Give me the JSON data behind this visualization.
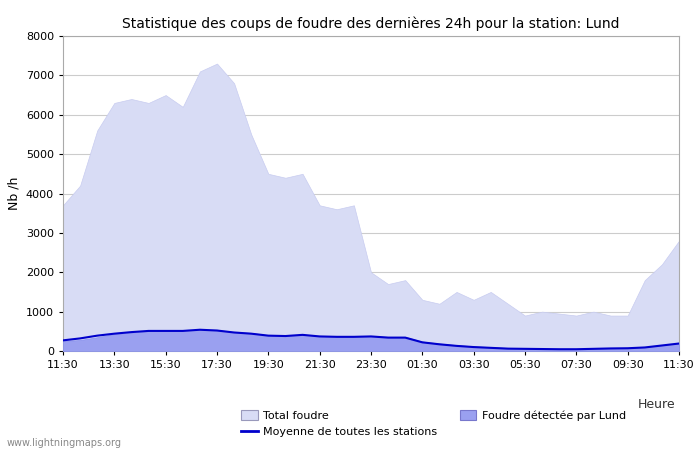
{
  "title": "Statistique des coups de foudre des dernières 24h pour la station: Lund",
  "ylabel": "Nb /h",
  "ylim": [
    0,
    8000
  ],
  "yticks": [
    0,
    1000,
    2000,
    3000,
    4000,
    5000,
    6000,
    7000,
    8000
  ],
  "xtick_labels": [
    "11:30",
    "13:30",
    "15:30",
    "17:30",
    "19:30",
    "21:30",
    "23:30",
    "01:30",
    "03:30",
    "05:30",
    "07:30",
    "09:30",
    "11:30"
  ],
  "bg_color": "#ffffff",
  "plot_bg_color": "#ffffff",
  "grid_color": "#cccccc",
  "watermark": "www.lightningmaps.org",
  "total_foudre_color": "#d8dcf5",
  "total_foudre_edge": "#c8ccf0",
  "lund_color": "#9aa0f0",
  "lund_edge": "#8890ee",
  "mean_color": "#0000cc",
  "total_values": [
    3700,
    4200,
    5600,
    6300,
    6400,
    6300,
    6500,
    6200,
    7100,
    7300,
    6800,
    5500,
    4500,
    4400,
    4500,
    3700,
    3600,
    3700,
    2000,
    1700,
    1800,
    1300,
    1200,
    1500,
    1300,
    1500,
    1200,
    900,
    1000,
    950,
    900,
    1000,
    900,
    900,
    1800,
    2200,
    2800
  ],
  "lund_values": [
    250,
    280,
    350,
    430,
    470,
    510,
    530,
    520,
    540,
    540,
    480,
    460,
    400,
    390,
    420,
    380,
    370,
    370,
    380,
    360,
    360,
    240,
    190,
    150,
    120,
    100,
    80,
    70,
    60,
    50,
    50,
    60,
    70,
    80,
    100,
    150,
    200
  ],
  "mean_values": [
    270,
    320,
    390,
    440,
    480,
    510,
    510,
    510,
    540,
    520,
    470,
    440,
    390,
    380,
    410,
    370,
    360,
    360,
    370,
    340,
    340,
    220,
    170,
    130,
    100,
    80,
    60,
    55,
    50,
    45,
    45,
    55,
    65,
    70,
    90,
    140,
    190
  ],
  "legend_row1": [
    "Total foudre",
    "Moyenne de toutes les stations"
  ],
  "legend_row2": [
    "Foudre détectée par Lund"
  ],
  "heure_label": "Heure"
}
